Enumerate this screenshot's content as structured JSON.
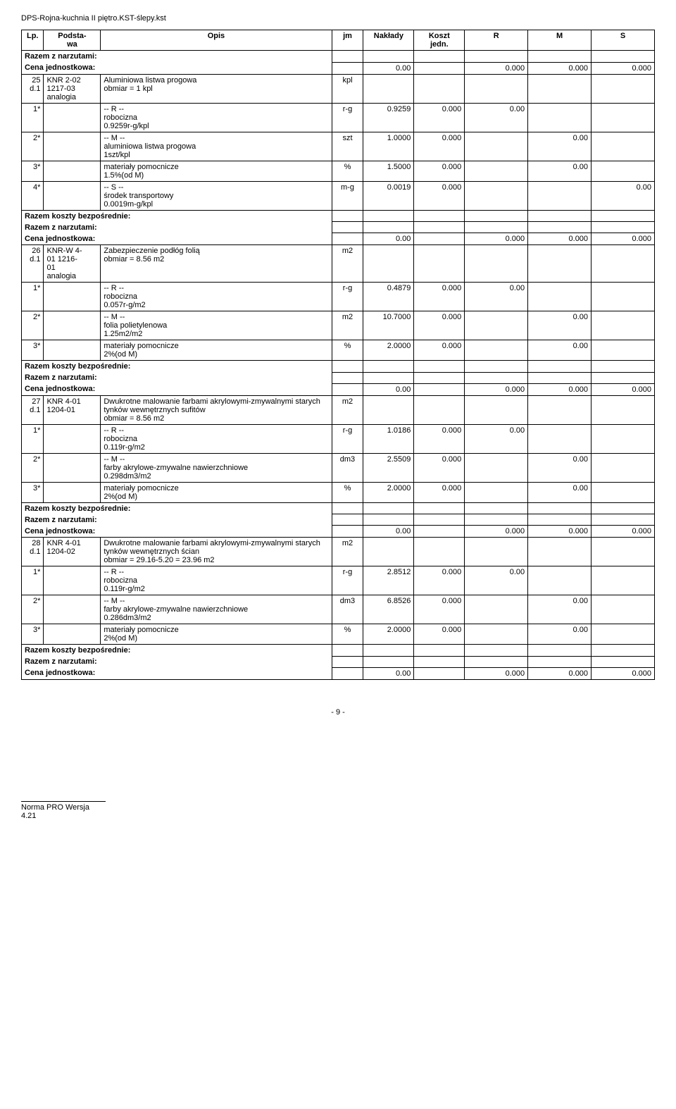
{
  "doc_title": "DPS-Rojna-kuchnia II piętro.KST-ślepy.kst",
  "header": {
    "lp": "Lp.",
    "podstawa": "Podsta-\nwa",
    "opis": "Opis",
    "jm": "jm",
    "naklady": "Nakłady",
    "koszt": "Koszt\njedn.",
    "r": "R",
    "m": "M",
    "s": "S"
  },
  "labels": {
    "razem_narzut": "Razem z narzutami:",
    "cena_jedn": "Cena jednostkowa:",
    "razem_koszty": "Razem koszty bezpośrednie:",
    "r_sep": "-- R --",
    "m_sep": "-- M --",
    "s_sep": "-- S --"
  },
  "cj_zero": "0.00",
  "triple_zero": "0.000",
  "blocks": [
    {
      "top_summary": true,
      "item": {
        "lp": "25",
        "d": "d.1",
        "code": "KNR 2-02\n1217-03\nanalogia",
        "opis": "Aluminiowa listwa progowa\nobmiar  = 1 kpl",
        "jm": "kpl"
      },
      "r_rows": [
        {
          "lp": "1*",
          "opis": "robocizna\n0.9259r-g/kpl",
          "jm": "r-g",
          "nak": "0.9259",
          "kj": "0.000",
          "r": "0.00",
          "m": "",
          "s": ""
        }
      ],
      "m_rows": [
        {
          "lp": "2*",
          "opis": "aluminiowa listwa progowa\n1szt/kpl",
          "jm": "szt",
          "nak": "1.0000",
          "kj": "0.000",
          "r": "",
          "m": "0.00",
          "s": ""
        },
        {
          "lp": "3*",
          "opis": "materiały pomocnicze\n1.5%(od M)",
          "jm": "%",
          "nak": "1.5000",
          "kj": "0.000",
          "r": "",
          "m": "0.00",
          "s": ""
        }
      ],
      "s_rows": [
        {
          "lp": "4*",
          "opis": "środek transportowy\n0.0019m-g/kpl",
          "jm": "m-g",
          "nak": "0.0019",
          "kj": "0.000",
          "r": "",
          "m": "",
          "s": "0.00"
        }
      ],
      "bottom_summary": true
    },
    {
      "top_summary": false,
      "item": {
        "lp": "26",
        "d": "d.1",
        "code": "KNR-W 4-\n01 1216-\n01\nanalogia",
        "opis": "Zabezpieczenie podłóg folią\nobmiar  = 8.56 m2",
        "jm": "m2"
      },
      "r_rows": [
        {
          "lp": "1*",
          "opis": "robocizna\n0.057r-g/m2",
          "jm": "r-g",
          "nak": "0.4879",
          "kj": "0.000",
          "r": "0.00",
          "m": "",
          "s": ""
        }
      ],
      "m_rows": [
        {
          "lp": "2*",
          "opis": "folia polietylenowa\n1.25m2/m2",
          "jm": "m2",
          "nak": "10.7000",
          "kj": "0.000",
          "r": "",
          "m": "0.00",
          "s": ""
        },
        {
          "lp": "3*",
          "opis": "materiały pomocnicze\n2%(od M)",
          "jm": "%",
          "nak": "2.0000",
          "kj": "0.000",
          "r": "",
          "m": "0.00",
          "s": ""
        }
      ],
      "s_rows": [],
      "bottom_summary": true
    },
    {
      "top_summary": false,
      "item": {
        "lp": "27",
        "d": "d.1",
        "code": "KNR 4-01\n1204-01",
        "opis": "Dwukrotne malowanie farbami akrylowymi-zmywalnymi starych tynków wewnętrznych sufitów\nobmiar  = 8.56 m2",
        "jm": "m2"
      },
      "r_rows": [
        {
          "lp": "1*",
          "opis": "robocizna\n0.119r-g/m2",
          "jm": "r-g",
          "nak": "1.0186",
          "kj": "0.000",
          "r": "0.00",
          "m": "",
          "s": ""
        }
      ],
      "m_rows": [
        {
          "lp": "2*",
          "opis": "farby akrylowe-zmywalne nawierzchniowe\n0.298dm3/m2",
          "jm": "dm3",
          "nak": "2.5509",
          "kj": "0.000",
          "r": "",
          "m": "0.00",
          "s": ""
        },
        {
          "lp": "3*",
          "opis": "materiały pomocnicze\n2%(od M)",
          "jm": "%",
          "nak": "2.0000",
          "kj": "0.000",
          "r": "",
          "m": "0.00",
          "s": ""
        }
      ],
      "s_rows": [],
      "bottom_summary": true
    },
    {
      "top_summary": false,
      "item": {
        "lp": "28",
        "d": "d.1",
        "code": "KNR 4-01\n1204-02",
        "opis": "Dwukrotne malowanie farbami akrylowymi-zmywalnymi starych tynków wewnętrznych ścian\nobmiar  = 29.16-5.20 = 23.96 m2",
        "jm": "m2"
      },
      "r_rows": [
        {
          "lp": "1*",
          "opis": "robocizna\n0.119r-g/m2",
          "jm": "r-g",
          "nak": "2.8512",
          "kj": "0.000",
          "r": "0.00",
          "m": "",
          "s": ""
        }
      ],
      "m_rows": [
        {
          "lp": "2*",
          "opis": "farby akrylowe-zmywalne nawierzchniowe\n0.286dm3/m2",
          "jm": "dm3",
          "nak": "6.8526",
          "kj": "0.000",
          "r": "",
          "m": "0.00",
          "s": ""
        },
        {
          "lp": "3*",
          "opis": "materiały pomocnicze\n2%(od M)",
          "jm": "%",
          "nak": "2.0000",
          "kj": "0.000",
          "r": "",
          "m": "0.00",
          "s": ""
        }
      ],
      "s_rows": [],
      "bottom_summary": true
    }
  ],
  "page_num": "- 9 -",
  "footer": "Norma PRO Wersja 4.21"
}
